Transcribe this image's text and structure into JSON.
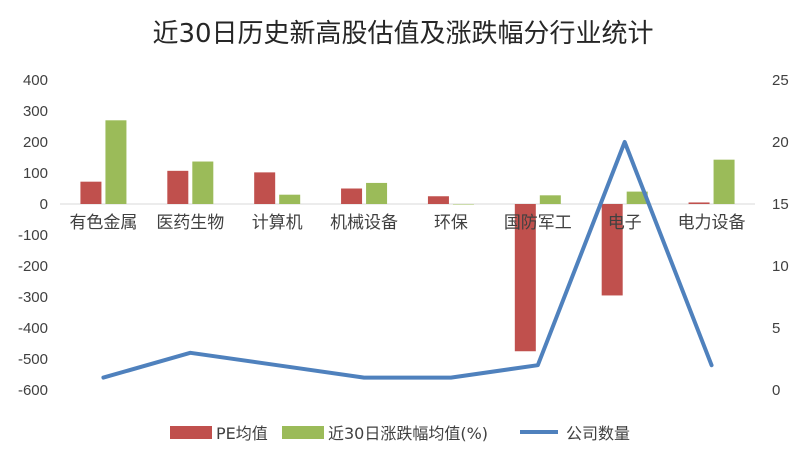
{
  "chart_data": {
    "type": "bar",
    "title": "近30日历史新高股估值及涨跌幅分行业统计",
    "categories": [
      "有色金属",
      "医药生物",
      "计算机",
      "机械设备",
      "环保",
      "国防军工",
      "电子",
      "电力设备"
    ],
    "series": [
      {
        "name": "PE均值",
        "type": "bar",
        "axis": "left",
        "color": "#C0504D",
        "values": [
          72,
          107,
          102,
          50,
          25,
          -475,
          -295,
          5
        ]
      },
      {
        "name": "近30日涨跌幅均值(%)",
        "type": "bar",
        "axis": "left",
        "color": "#9BBB59",
        "values": [
          270,
          137,
          30,
          68,
          0,
          28,
          40,
          143
        ]
      },
      {
        "name": "公司数量",
        "type": "line",
        "axis": "right",
        "color": "#4F81BD",
        "values": [
          1,
          3,
          2,
          1,
          1,
          2,
          20,
          2
        ]
      }
    ],
    "y_left": {
      "min": -600,
      "max": 400,
      "step": 100,
      "ticks": [
        "-600",
        "-500",
        "-400",
        "-300",
        "-200",
        "-100",
        "0",
        "100",
        "200",
        "300",
        "400"
      ]
    },
    "y_right": {
      "min": 0,
      "max": 25,
      "step": 5,
      "ticks": [
        "0",
        "5",
        "10",
        "15",
        "20",
        "25"
      ]
    },
    "grid": false,
    "legend": "bottom"
  }
}
